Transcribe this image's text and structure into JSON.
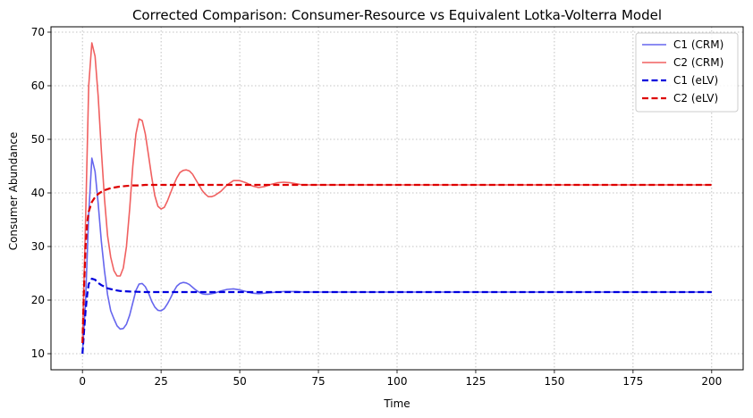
{
  "chart_data": {
    "type": "line",
    "title": "Corrected Comparison: Consumer-Resource vs Equivalent Lotka-Volterra Model",
    "xlabel": "Time",
    "ylabel": "Consumer Abundance",
    "xlim": [
      -10,
      210
    ],
    "ylim": [
      7,
      71
    ],
    "xticks": [
      0,
      25,
      50,
      75,
      100,
      125,
      150,
      175,
      200
    ],
    "yticks": [
      10,
      20,
      30,
      40,
      50,
      60,
      70
    ],
    "grid": true,
    "legend_position": "top-right",
    "series": [
      {
        "name": "C1 (CRM)",
        "color": "#6666ee",
        "style": "solid",
        "x": [
          0,
          1,
          2,
          3,
          4,
          5,
          6,
          7,
          8,
          9,
          10,
          11,
          12,
          13,
          14,
          15,
          16,
          17,
          18,
          19,
          20,
          21,
          22,
          23,
          24,
          25,
          26,
          27,
          28,
          29,
          30,
          31,
          32,
          33,
          34,
          35,
          36,
          37,
          38,
          39,
          40,
          42,
          44,
          46,
          48,
          50,
          52,
          54,
          56,
          58,
          60,
          62,
          64,
          66,
          68,
          70,
          75,
          80,
          90,
          100,
          125,
          150,
          175,
          200
        ],
        "y": [
          10,
          20,
          36,
          46.5,
          44,
          38,
          31,
          25.5,
          21,
          18,
          16.5,
          15.2,
          14.6,
          14.7,
          15.5,
          17.2,
          19.5,
          21.8,
          23,
          23.1,
          22.5,
          21.3,
          19.8,
          18.7,
          18.1,
          18,
          18.4,
          19.3,
          20.4,
          21.6,
          22.6,
          23.1,
          23.3,
          23.2,
          22.9,
          22.4,
          21.9,
          21.5,
          21.2,
          21.1,
          21.1,
          21.3,
          21.7,
          22,
          22.1,
          21.9,
          21.6,
          21.3,
          21.2,
          21.3,
          21.4,
          21.5,
          21.6,
          21.6,
          21.6,
          21.5,
          21.5,
          21.5,
          21.5,
          21.5,
          21.5,
          21.5,
          21.5,
          21.5
        ]
      },
      {
        "name": "C2 (CRM)",
        "color": "#f06060",
        "style": "solid",
        "x": [
          0,
          1,
          2,
          3,
          4,
          5,
          6,
          7,
          8,
          9,
          10,
          11,
          12,
          13,
          14,
          15,
          16,
          17,
          18,
          19,
          20,
          21,
          22,
          23,
          24,
          25,
          26,
          27,
          28,
          29,
          30,
          31,
          32,
          33,
          34,
          35,
          36,
          37,
          38,
          39,
          40,
          41,
          42,
          44,
          46,
          48,
          50,
          52,
          54,
          56,
          58,
          60,
          62,
          64,
          66,
          68,
          70,
          75,
          80,
          90,
          100,
          125,
          150,
          175,
          200
        ],
        "y": [
          12,
          35,
          60,
          68,
          65.5,
          58,
          48,
          39,
          32,
          28,
          25.5,
          24.5,
          24.5,
          26,
          30,
          37,
          45,
          51,
          53.8,
          53.5,
          51,
          47,
          43,
          39.5,
          37.5,
          37,
          37.3,
          38.5,
          40,
          41.5,
          42.8,
          43.8,
          44.2,
          44.3,
          44.1,
          43.5,
          42.5,
          41.5,
          40.5,
          39.8,
          39.3,
          39.3,
          39.5,
          40.3,
          41.5,
          42.3,
          42.3,
          41.9,
          41.3,
          41,
          41.2,
          41.6,
          41.9,
          42,
          41.9,
          41.7,
          41.5,
          41.5,
          41.5,
          41.5,
          41.5,
          41.5,
          41.5,
          41.5,
          41.5
        ]
      },
      {
        "name": "C1 (eLV)",
        "color": "#0000dd",
        "style": "dashed",
        "x": [
          0,
          0.5,
          1,
          1.5,
          2,
          3,
          4,
          5,
          6,
          7,
          8,
          10,
          12,
          15,
          20,
          25,
          30,
          40,
          50,
          75,
          100,
          125,
          150,
          175,
          200
        ],
        "y": [
          10,
          14,
          18,
          21,
          23,
          24,
          23.8,
          23.2,
          22.8,
          22.5,
          22.2,
          21.9,
          21.7,
          21.6,
          21.5,
          21.5,
          21.5,
          21.5,
          21.5,
          21.5,
          21.5,
          21.5,
          21.5,
          21.5,
          21.5
        ]
      },
      {
        "name": "C2 (eLV)",
        "color": "#dd0000",
        "style": "dashed",
        "x": [
          0,
          0.5,
          1,
          1.5,
          2,
          3,
          4,
          5,
          6,
          7,
          8,
          9,
          10,
          12,
          14,
          16,
          18,
          20,
          25,
          30,
          40,
          50,
          75,
          100,
          125,
          150,
          175,
          200
        ],
        "y": [
          12,
          22,
          30,
          34.5,
          36.5,
          38.3,
          39.2,
          39.8,
          40.2,
          40.5,
          40.7,
          40.9,
          41,
          41.2,
          41.3,
          41.4,
          41.4,
          41.5,
          41.5,
          41.5,
          41.5,
          41.5,
          41.5,
          41.5,
          41.5,
          41.5,
          41.5,
          41.5
        ]
      }
    ]
  }
}
